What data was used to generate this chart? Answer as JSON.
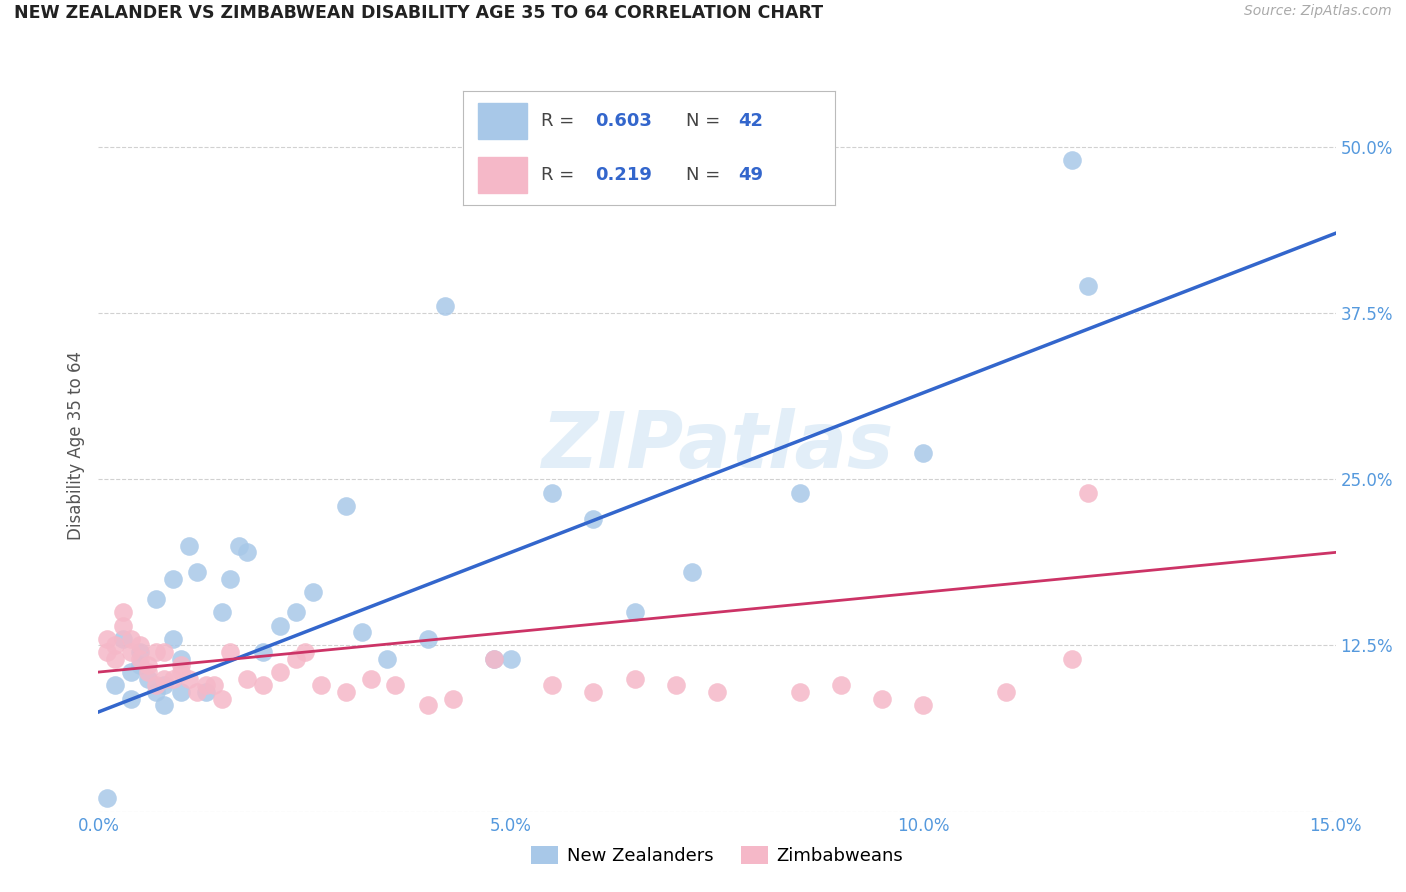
{
  "title": "NEW ZEALANDER VS ZIMBABWEAN DISABILITY AGE 35 TO 64 CORRELATION CHART",
  "source": "Source: ZipAtlas.com",
  "ylabel": "Disability Age 35 to 64",
  "xlim": [
    0.0,
    0.15
  ],
  "ylim": [
    0.0,
    0.55
  ],
  "x_ticks": [
    0.0,
    0.05,
    0.1,
    0.15
  ],
  "x_tick_labels": [
    "0.0%",
    "5.0%",
    "10.0%",
    "15.0%"
  ],
  "y_ticks": [
    0.0,
    0.125,
    0.25,
    0.375,
    0.5
  ],
  "y_tick_labels": [
    "",
    "12.5%",
    "25.0%",
    "37.5%",
    "50.0%"
  ],
  "legend_nz_label": "New Zealanders",
  "legend_zim_label": "Zimbabweans",
  "nz_R": "0.603",
  "nz_N": "42",
  "zim_R": "0.219",
  "zim_N": "49",
  "nz_color": "#a8c8e8",
  "nz_line_color": "#3366cc",
  "zim_color": "#f5b8c8",
  "zim_line_color": "#cc3366",
  "watermark": "ZIPatlas",
  "background_color": "#ffffff",
  "grid_color": "#cccccc",
  "nz_x": [
    0.001,
    0.002,
    0.003,
    0.004,
    0.004,
    0.005,
    0.005,
    0.006,
    0.007,
    0.007,
    0.008,
    0.008,
    0.009,
    0.009,
    0.01,
    0.01,
    0.011,
    0.012,
    0.013,
    0.015,
    0.016,
    0.017,
    0.018,
    0.02,
    0.022,
    0.024,
    0.026,
    0.03,
    0.032,
    0.035,
    0.04,
    0.042,
    0.05,
    0.055,
    0.06,
    0.065,
    0.072,
    0.085,
    0.1,
    0.118,
    0.12,
    0.048
  ],
  "nz_y": [
    0.01,
    0.095,
    0.13,
    0.085,
    0.105,
    0.11,
    0.12,
    0.1,
    0.09,
    0.16,
    0.08,
    0.095,
    0.175,
    0.13,
    0.09,
    0.115,
    0.2,
    0.18,
    0.09,
    0.15,
    0.175,
    0.2,
    0.195,
    0.12,
    0.14,
    0.15,
    0.165,
    0.23,
    0.135,
    0.115,
    0.13,
    0.38,
    0.115,
    0.24,
    0.22,
    0.15,
    0.18,
    0.24,
    0.27,
    0.49,
    0.395,
    0.115
  ],
  "zim_x": [
    0.001,
    0.001,
    0.002,
    0.002,
    0.003,
    0.003,
    0.004,
    0.004,
    0.005,
    0.005,
    0.006,
    0.006,
    0.007,
    0.007,
    0.008,
    0.008,
    0.009,
    0.01,
    0.01,
    0.011,
    0.012,
    0.013,
    0.014,
    0.015,
    0.016,
    0.018,
    0.02,
    0.022,
    0.024,
    0.025,
    0.027,
    0.03,
    0.033,
    0.036,
    0.04,
    0.043,
    0.048,
    0.055,
    0.06,
    0.065,
    0.07,
    0.075,
    0.085,
    0.09,
    0.095,
    0.1,
    0.11,
    0.118,
    0.12
  ],
  "zim_y": [
    0.13,
    0.12,
    0.125,
    0.115,
    0.14,
    0.15,
    0.12,
    0.13,
    0.115,
    0.125,
    0.11,
    0.105,
    0.12,
    0.095,
    0.1,
    0.12,
    0.1,
    0.105,
    0.11,
    0.1,
    0.09,
    0.095,
    0.095,
    0.085,
    0.12,
    0.1,
    0.095,
    0.105,
    0.115,
    0.12,
    0.095,
    0.09,
    0.1,
    0.095,
    0.08,
    0.085,
    0.115,
    0.095,
    0.09,
    0.1,
    0.095,
    0.09,
    0.09,
    0.095,
    0.085,
    0.08,
    0.09,
    0.115,
    0.24
  ],
  "nz_line_x": [
    0.0,
    0.15
  ],
  "nz_line_y": [
    0.075,
    0.435
  ],
  "zim_line_x": [
    0.0,
    0.15
  ],
  "zim_line_y": [
    0.105,
    0.195
  ]
}
